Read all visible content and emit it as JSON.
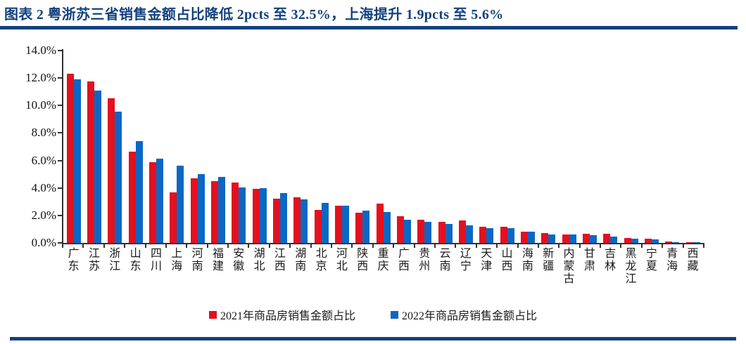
{
  "header": {
    "title": "图表 2  粤浙苏三省销售金额占比降低 2pcts 至 32.5%，上海提升 1.9pcts 至 5.6%"
  },
  "colors": {
    "accent_navy": "#12417f",
    "bar_2021_red": "#e4101f",
    "bar_2022_blue": "#0b67c4",
    "axis": "#333333"
  },
  "chart_data": {
    "type": "bar",
    "title": "粤浙苏三省销售金额占比降低 2pcts 至 32.5%，上海提升 1.9pcts 至 5.6%",
    "xlabel": "",
    "ylabel": "",
    "ylim": [
      0,
      14
    ],
    "y_tick_step": 2,
    "y_ticks": [
      "0.0%",
      "2.0%",
      "4.0%",
      "6.0%",
      "8.0%",
      "10.0%",
      "12.0%",
      "14.0%"
    ],
    "grid": false,
    "legend_position": "bottom",
    "categories": [
      "广东",
      "江苏",
      "浙江",
      "山东",
      "四川",
      "上海",
      "河南",
      "福建",
      "安徽",
      "湖北",
      "江西",
      "湖南",
      "北京",
      "河北",
      "陕西",
      "重庆",
      "广西",
      "贵州",
      "云南",
      "辽宁",
      "天津",
      "山西",
      "海南",
      "新疆",
      "内蒙古",
      "甘肃",
      "吉林",
      "黑龙江",
      "宁夏",
      "青海",
      "西藏"
    ],
    "series": [
      {
        "name": "2021年商品房销售金额占比",
        "color": "#e4101f",
        "values": [
          12.3,
          11.75,
          10.5,
          6.65,
          5.9,
          3.7,
          4.7,
          4.5,
          4.4,
          3.95,
          3.2,
          3.3,
          2.4,
          2.7,
          2.2,
          2.85,
          1.95,
          1.7,
          1.55,
          1.65,
          1.2,
          1.15,
          0.8,
          0.7,
          0.6,
          0.65,
          0.65,
          0.35,
          0.3,
          0.1,
          0.05
        ]
      },
      {
        "name": "2022年商品房销售金额占比",
        "color": "#0b67c4",
        "values": [
          11.9,
          11.1,
          9.55,
          7.4,
          6.15,
          5.6,
          5.0,
          4.8,
          4.05,
          4.0,
          3.65,
          3.15,
          2.9,
          2.7,
          2.35,
          2.25,
          1.7,
          1.55,
          1.4,
          1.3,
          1.05,
          1.05,
          0.8,
          0.6,
          0.6,
          0.55,
          0.45,
          0.3,
          0.25,
          0.05,
          0.02
        ]
      }
    ]
  }
}
